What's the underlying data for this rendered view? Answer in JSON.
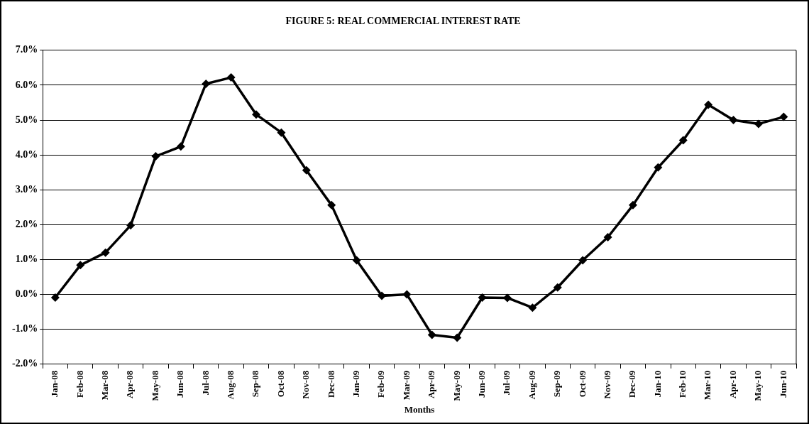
{
  "chart_data": {
    "type": "line",
    "title": "FIGURE 5: REAL COMMERCIAL INTEREST RATE",
    "xlabel": "Months",
    "categories": [
      "Jan-08",
      "Feb-08",
      "Mar-08",
      "Apr-08",
      "May-08",
      "Jun-08",
      "Jul-08",
      "Aug-08",
      "Sep-08",
      "Oct-08",
      "Nov-08",
      "Dec-08",
      "Jan-09",
      "Feb-09",
      "Mar-09",
      "Apr-09",
      "May-09",
      "Jun-09",
      "Jul-09",
      "Aug-09",
      "Sep-09",
      "Oct-09",
      "Nov-09",
      "Dec-09",
      "Jan-10",
      "Feb-10",
      "Mar-10",
      "Apr-10",
      "May-10",
      "Jun-10"
    ],
    "series": [
      {
        "color": "#000000",
        "values": [
          -0.09,
          0.84,
          1.2,
          1.98,
          3.96,
          4.24,
          6.04,
          6.22,
          5.16,
          4.64,
          3.56,
          2.56,
          0.98,
          -0.04,
          0.0,
          -1.16,
          -1.24,
          -0.09,
          -0.1,
          -0.38,
          0.2,
          0.98,
          1.64,
          2.56,
          3.64,
          4.42,
          5.44,
          5.0,
          4.89,
          5.09
        ]
      }
    ],
    "ylim": [
      -2,
      7
    ],
    "yticks": [
      {
        "value": -2,
        "label": "-2.0%"
      },
      {
        "value": -1,
        "label": "-1.0%"
      },
      {
        "value": 0,
        "label": "0.0%"
      },
      {
        "value": 1,
        "label": "1.0%"
      },
      {
        "value": 2,
        "label": "2.0%"
      },
      {
        "value": 3,
        "label": "3.0%"
      },
      {
        "value": 4,
        "label": "4.0%"
      },
      {
        "value": 5,
        "label": "5.0%"
      },
      {
        "value": 6,
        "label": "6.0%"
      },
      {
        "value": 7,
        "label": "7.0%"
      }
    ],
    "grid": "y",
    "legend": false,
    "marker": "diamond",
    "line_style": "solid"
  }
}
